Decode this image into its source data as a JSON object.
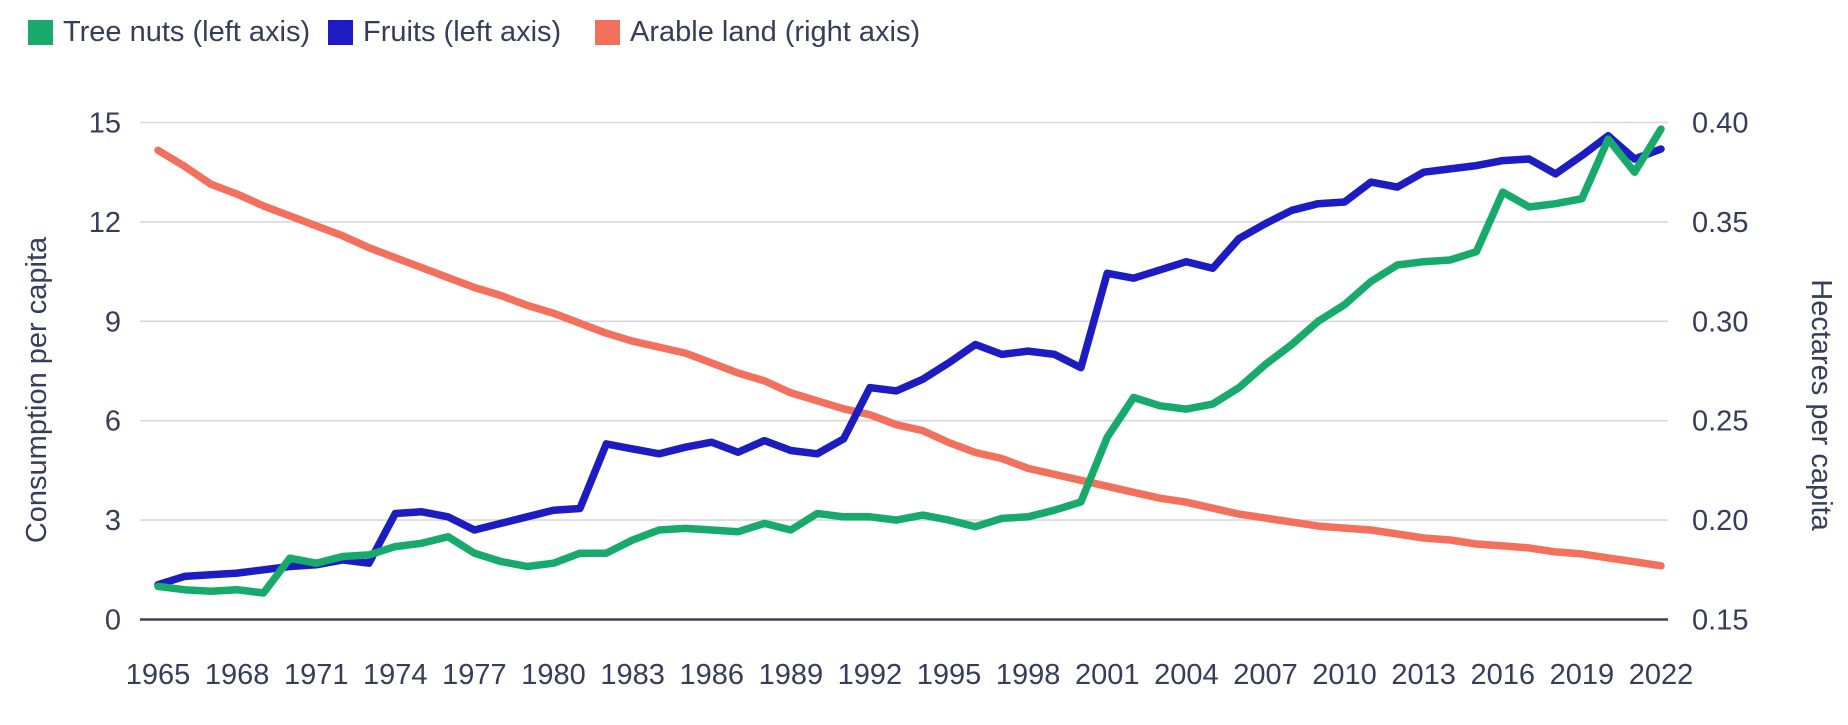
{
  "legend": {
    "items": [
      {
        "label": "Tree nuts (left axis)",
        "color": "#17aa6b"
      },
      {
        "label": "Fruits (left axis)",
        "color": "#1c1cc2"
      },
      {
        "label": "Arable land (right axis)",
        "color": "#f2705c"
      }
    ]
  },
  "left_axis": {
    "title": "Consumption per capita",
    "tick_labels": [
      "0",
      "3",
      "6",
      "9",
      "12",
      "15"
    ]
  },
  "right_axis": {
    "title": "Hectares per capita",
    "tick_labels": [
      "0.15",
      "0.20",
      "0.25",
      "0.30",
      "0.35",
      "0.40"
    ]
  },
  "x_axis": {
    "tick_labels": [
      "1965",
      "1968",
      "1971",
      "1974",
      "1977",
      "1980",
      "1983",
      "1986",
      "1989",
      "1992",
      "1995",
      "1998",
      "2001",
      "2004",
      "2007",
      "2010",
      "2013",
      "2016",
      "2019",
      "2022"
    ]
  },
  "chart_data": {
    "type": "line",
    "title": "",
    "x": [
      1965,
      1966,
      1967,
      1968,
      1969,
      1970,
      1971,
      1972,
      1973,
      1974,
      1975,
      1976,
      1977,
      1978,
      1979,
      1980,
      1981,
      1982,
      1983,
      1984,
      1985,
      1986,
      1987,
      1988,
      1989,
      1990,
      1991,
      1992,
      1993,
      1994,
      1995,
      1996,
      1997,
      1998,
      1999,
      2000,
      2001,
      2002,
      2003,
      2004,
      2005,
      2006,
      2007,
      2008,
      2009,
      2010,
      2011,
      2012,
      2013,
      2014,
      2015,
      2016,
      2017,
      2018,
      2019,
      2020,
      2021,
      2022
    ],
    "x_tick_years": [
      1965,
      1968,
      1971,
      1974,
      1977,
      1980,
      1983,
      1986,
      1989,
      1992,
      1995,
      1998,
      2001,
      2004,
      2007,
      2010,
      2013,
      2016,
      2019,
      2022
    ],
    "left_ylabel": "Consumption per capita",
    "right_ylabel": "Hectares per capita",
    "left_ylim": [
      0,
      15
    ],
    "right_ylim": [
      0.15,
      0.4
    ],
    "left_ticks": [
      0,
      3,
      6,
      9,
      12,
      15
    ],
    "right_ticks": [
      0.15,
      0.2,
      0.25,
      0.3,
      0.35,
      0.4
    ],
    "grid": true,
    "legend_position": "top-left",
    "series": [
      {
        "name": "Arable land (right axis)",
        "axis": "right",
        "color": "#f2705c",
        "values": [
          0.386,
          0.378,
          0.369,
          0.364,
          0.358,
          0.353,
          0.348,
          0.343,
          0.337,
          0.332,
          0.327,
          0.322,
          0.317,
          0.313,
          0.308,
          0.304,
          0.299,
          0.294,
          0.29,
          0.287,
          0.284,
          0.279,
          0.274,
          0.27,
          0.264,
          0.26,
          0.256,
          0.253,
          0.248,
          0.245,
          0.239,
          0.234,
          0.231,
          0.226,
          0.223,
          0.22,
          0.217,
          0.214,
          0.211,
          0.209,
          0.206,
          0.203,
          0.201,
          0.199,
          0.197,
          0.196,
          0.195,
          0.193,
          0.191,
          0.19,
          0.188,
          0.187,
          0.186,
          0.184,
          0.183,
          0.181,
          0.179,
          0.177
        ]
      },
      {
        "name": "Fruits (left axis)",
        "axis": "left",
        "color": "#1c1cc2",
        "values": [
          1.05,
          1.3,
          1.35,
          1.4,
          1.5,
          1.6,
          1.65,
          1.8,
          1.7,
          3.2,
          3.25,
          3.1,
          2.7,
          2.9,
          3.1,
          3.3,
          3.35,
          5.3,
          5.15,
          5.0,
          5.2,
          5.35,
          5.05,
          5.4,
          5.1,
          5.0,
          5.45,
          7.0,
          6.9,
          7.25,
          7.75,
          8.3,
          8.0,
          8.1,
          8.0,
          7.6,
          10.45,
          10.3,
          10.55,
          10.8,
          10.6,
          11.5,
          11.95,
          12.35,
          12.55,
          12.6,
          13.2,
          13.05,
          13.5,
          13.6,
          13.7,
          13.85,
          13.9,
          13.45,
          14.0,
          14.6,
          13.9,
          14.2
        ]
      },
      {
        "name": "Tree nuts (left axis)",
        "axis": "left",
        "color": "#17aa6b",
        "values": [
          1.0,
          0.9,
          0.85,
          0.9,
          0.8,
          1.85,
          1.7,
          1.9,
          1.95,
          2.2,
          2.3,
          2.5,
          2.0,
          1.75,
          1.6,
          1.7,
          2.0,
          2.0,
          2.4,
          2.7,
          2.75,
          2.7,
          2.65,
          2.9,
          2.7,
          3.2,
          3.1,
          3.1,
          3.0,
          3.15,
          3.0,
          2.8,
          3.05,
          3.1,
          3.3,
          3.55,
          5.5,
          6.7,
          6.45,
          6.35,
          6.5,
          7.0,
          7.7,
          8.3,
          9.0,
          9.5,
          10.2,
          10.7,
          10.8,
          10.85,
          11.1,
          12.9,
          12.45,
          12.55,
          12.7,
          14.5,
          13.5,
          14.8
        ]
      }
    ],
    "colors": {
      "text": "#363c5c",
      "gridline": "#d7d7df",
      "axis_line": "#3c4156",
      "background": "#ffffff"
    }
  }
}
